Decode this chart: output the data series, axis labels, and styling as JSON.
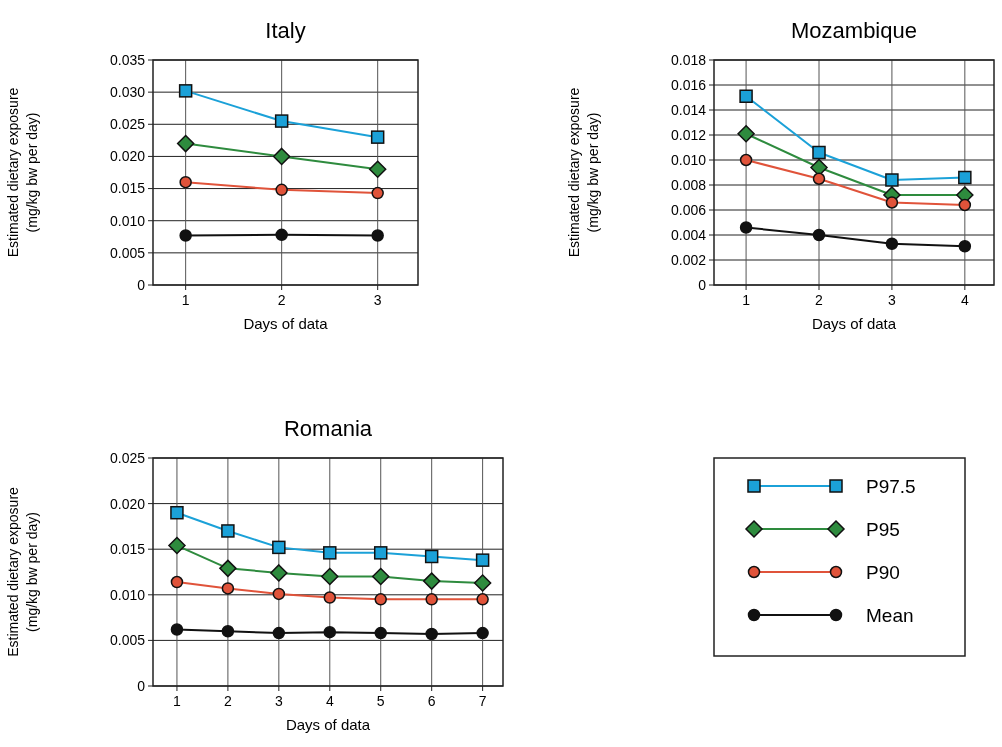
{
  "chart_data": [
    {
      "type": "line",
      "title": "Italy",
      "xlabel": "Days of data",
      "ylabel": "Estimated dietary exposure\n(mg/kg bw per day)",
      "x": [
        1,
        2,
        3
      ],
      "xlim": [
        0.66,
        3.42
      ],
      "xticks": [
        1,
        2,
        3
      ],
      "ylim": [
        0,
        0.035
      ],
      "yticks": [
        0,
        0.005,
        {
          "value": 0.01,
          "label": "0.010"
        },
        0.015,
        {
          "value": 0.02,
          "label": "0.020"
        },
        0.025,
        {
          "value": 0.03,
          "label": "0.030"
        },
        0.035
      ],
      "grid": true,
      "legend": false,
      "series": [
        {
          "color": "#1ba1d8",
          "marker": "square",
          "values": [
            0.0302,
            0.0255,
            0.023
          ]
        },
        {
          "color": "#2e8b3e",
          "marker": "diamond",
          "values": [
            0.022,
            0.02,
            0.018
          ]
        },
        {
          "color": "#e0533a",
          "marker": "circle",
          "values": [
            0.016,
            0.0148,
            0.0143
          ]
        },
        {
          "color": "#111111",
          "marker": "circle",
          "values": [
            0.0077,
            0.0078,
            0.0077
          ]
        }
      ]
    },
    {
      "type": "line",
      "title": "Mozambique",
      "xlabel": "Days of data",
      "ylabel": "Estimated dietary exposure\n(mg/kg bw per day)",
      "x": [
        1,
        2,
        3,
        4
      ],
      "xlim": [
        0.56,
        4.4
      ],
      "xticks": [
        1,
        2,
        3,
        4
      ],
      "ylim": [
        0,
        0.018
      ],
      "yticks": [
        0,
        0.002,
        0.004,
        0.006,
        0.008,
        {
          "value": 0.01,
          "label": "0.010"
        },
        0.012,
        0.014,
        0.016,
        0.018
      ],
      "grid": true,
      "legend": false,
      "series": [
        {
          "color": "#1ba1d8",
          "marker": "square",
          "values": [
            0.0151,
            0.0106,
            0.0084,
            0.0086
          ]
        },
        {
          "color": "#2e8b3e",
          "marker": "diamond",
          "values": [
            0.0121,
            0.0094,
            0.0072,
            0.0072
          ]
        },
        {
          "color": "#e0533a",
          "marker": "circle",
          "values": [
            0.01,
            0.0085,
            0.0066,
            0.0064
          ]
        },
        {
          "color": "#111111",
          "marker": "circle",
          "values": [
            0.0046,
            0.004,
            0.0033,
            0.0031
          ]
        }
      ]
    },
    {
      "type": "line",
      "title": "Romania",
      "xlabel": "Days of data",
      "ylabel": "Estimated dietary exposure\n(mg/kg bw per day)",
      "x": [
        1,
        2,
        3,
        4,
        5,
        6,
        7
      ],
      "xlim": [
        0.53,
        7.4
      ],
      "xticks": [
        1,
        2,
        3,
        4,
        5,
        6,
        7
      ],
      "ylim": [
        0,
        0.025
      ],
      "yticks": [
        0,
        0.005,
        {
          "value": 0.01,
          "label": "0.010"
        },
        0.015,
        {
          "value": 0.02,
          "label": "0.020"
        },
        0.025
      ],
      "grid": true,
      "legend": "right",
      "series": [
        {
          "name": "P97.5",
          "color": "#1ba1d8",
          "marker": "square",
          "values": [
            0.019,
            0.017,
            0.0152,
            0.0146,
            0.0146,
            0.0142,
            0.0138
          ]
        },
        {
          "name": "P95",
          "color": "#2e8b3e",
          "marker": "diamond",
          "values": [
            0.0154,
            0.0129,
            0.0124,
            0.012,
            0.012,
            0.0115,
            0.0113
          ]
        },
        {
          "name": "P90",
          "color": "#e0533a",
          "marker": "circle",
          "values": [
            0.0114,
            0.0107,
            0.0101,
            0.0097,
            0.0095,
            0.0095,
            0.0095
          ]
        },
        {
          "name": "Mean",
          "color": "#111111",
          "marker": "circle",
          "values": [
            0.0062,
            0.006,
            0.0058,
            0.0059,
            0.0058,
            0.0057,
            0.0058
          ]
        }
      ]
    }
  ]
}
